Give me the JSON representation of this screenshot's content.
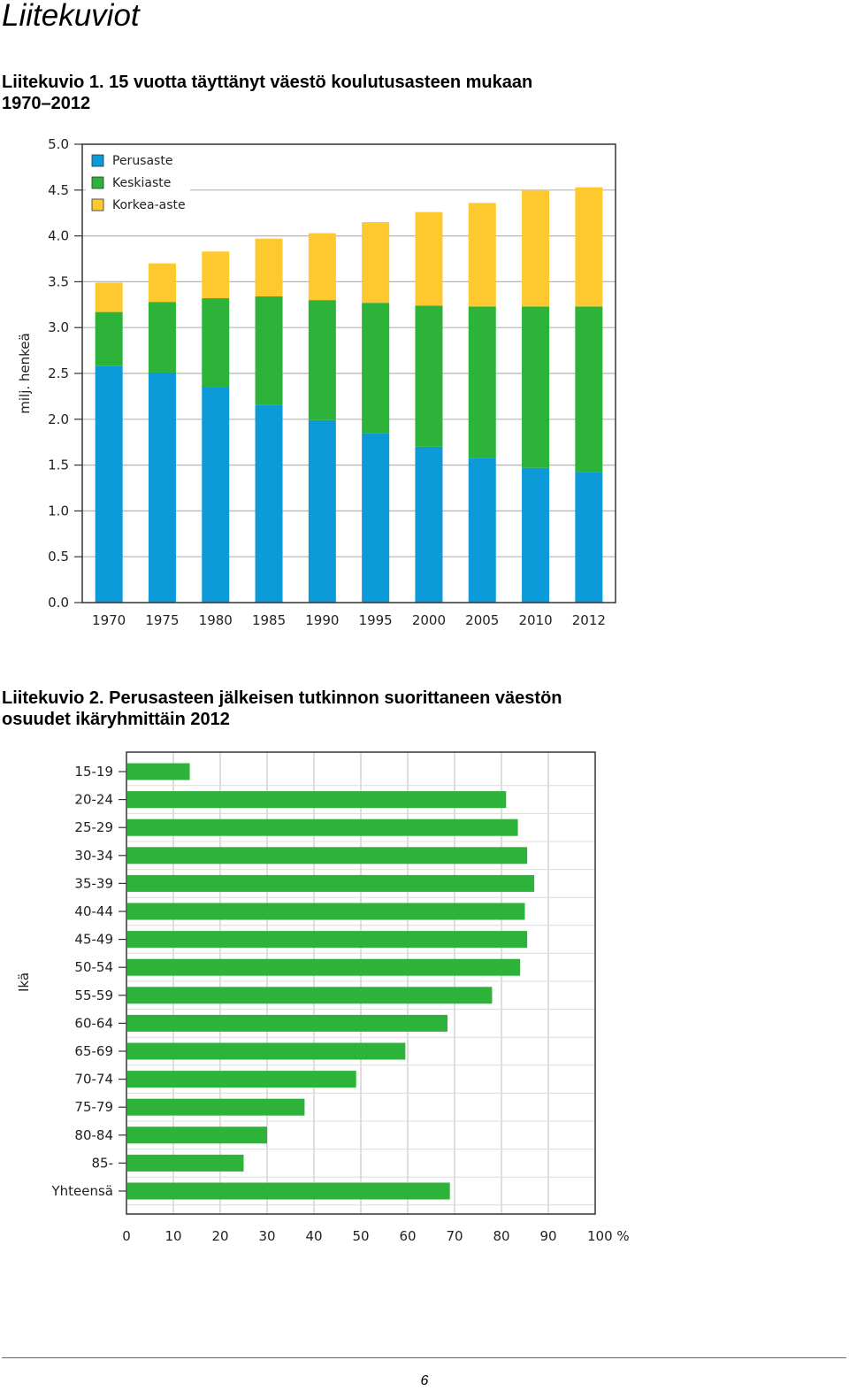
{
  "page": {
    "title": "Liitekuviot",
    "page_number": "6"
  },
  "figure1": {
    "caption_line1": "Liitekuvio 1. 15 vuotta täyttänyt väestö koulutusasteen mukaan",
    "caption_line2": "1970–2012"
  },
  "figure2": {
    "caption_line1": "Liitekuvio 2. Perusasteen jälkeisen tutkinnon suorittaneen väestön",
    "caption_line2": "osuudet ikäryhmittäin 2012"
  },
  "chart_data": [
    {
      "type": "bar",
      "stacked": true,
      "orientation": "vertical",
      "ylabel": "milj. henkeä",
      "ylim": [
        0,
        5
      ],
      "yticks": [
        "0.0",
        "0.5",
        "1.0",
        "1.5",
        "2.0",
        "2.5",
        "3.0",
        "3.5",
        "4.0",
        "4.5",
        "5.0"
      ],
      "grid": true,
      "legend_position": "top-left",
      "categories": [
        "1970",
        "1975",
        "1980",
        "1985",
        "1990",
        "1995",
        "2000",
        "2005",
        "2010",
        "2012"
      ],
      "series": [
        {
          "name": "Perusaste",
          "color": "#0d9ad9",
          "values": [
            2.58,
            2.51,
            2.35,
            2.16,
            1.99,
            1.85,
            1.7,
            1.58,
            1.47,
            1.42
          ]
        },
        {
          "name": "Keskiaste",
          "color": "#2db33a",
          "values": [
            0.59,
            0.77,
            0.97,
            1.18,
            1.31,
            1.42,
            1.54,
            1.65,
            1.76,
            1.81
          ]
        },
        {
          "name": "Korkea-aste",
          "color": "#fdc92f",
          "values": [
            0.32,
            0.42,
            0.51,
            0.63,
            0.73,
            0.88,
            1.02,
            1.13,
            1.27,
            1.3
          ]
        }
      ]
    },
    {
      "type": "bar",
      "orientation": "horizontal",
      "ylabel": "Ikä",
      "xlim": [
        0,
        100
      ],
      "xticks": [
        "0",
        "10",
        "20",
        "30",
        "40",
        "50",
        "60",
        "70",
        "80",
        "90",
        "100 %"
      ],
      "grid": true,
      "color": "#2db33a",
      "categories": [
        "15-19",
        "20-24",
        "25-29",
        "30-34",
        "35-39",
        "40-44",
        "45-49",
        "50-54",
        "55-59",
        "60-64",
        "65-69",
        "70-74",
        "75-79",
        "80-84",
        "85-",
        "Yhteensä"
      ],
      "values": [
        13.5,
        81,
        83.5,
        85.5,
        87,
        85,
        85.5,
        84,
        78,
        68.5,
        59.5,
        49,
        38,
        30,
        25,
        69
      ]
    }
  ]
}
